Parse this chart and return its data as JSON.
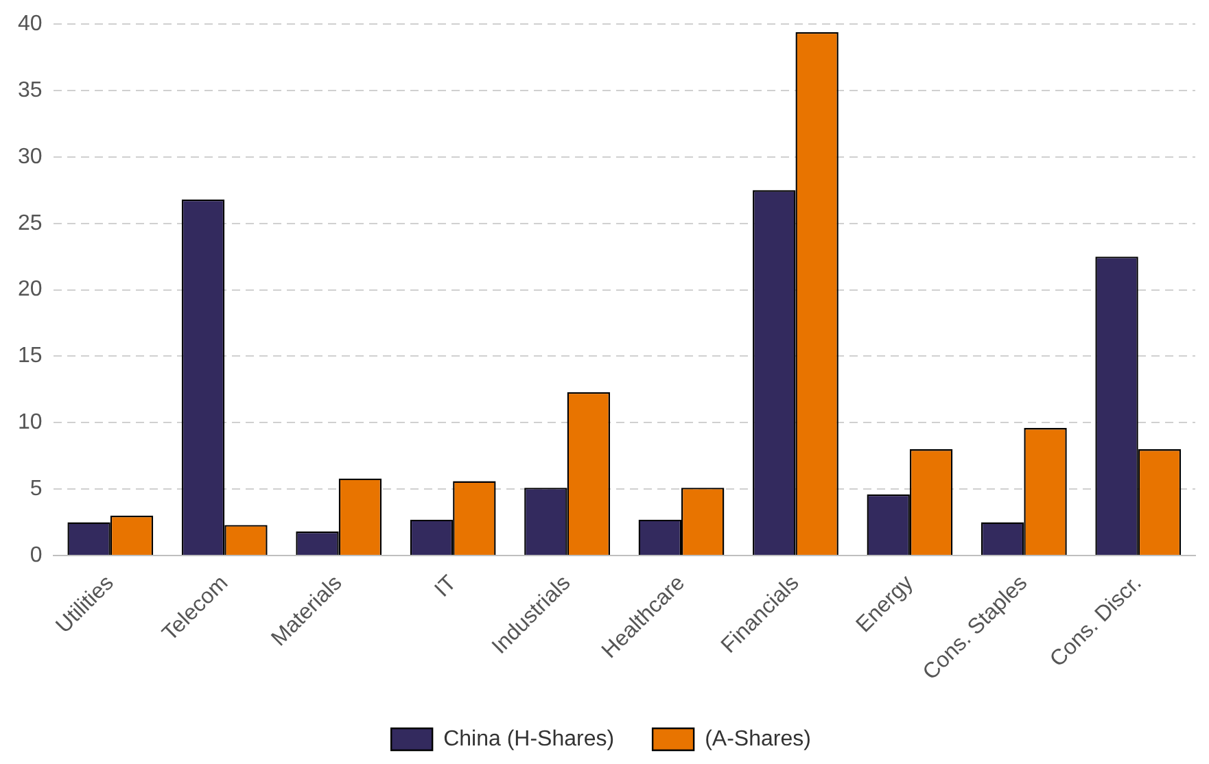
{
  "chart_data": {
    "type": "bar",
    "categories": [
      "Utilities",
      "Telecom",
      "Materials",
      "IT",
      "Industrials",
      "Healthcare",
      "Financials",
      "Energy",
      "Cons. Staples",
      "Cons. Discr."
    ],
    "series": [
      {
        "name": "China (H-Shares)",
        "color": "#332a5e",
        "values": [
          2.5,
          26.8,
          1.8,
          2.7,
          5.1,
          2.7,
          27.5,
          4.6,
          2.5,
          22.5
        ]
      },
      {
        "name": "(A-Shares)",
        "color": "#e87400",
        "values": [
          3.0,
          2.3,
          5.8,
          5.6,
          12.3,
          5.1,
          39.4,
          8.0,
          9.6,
          8.0
        ]
      }
    ],
    "ylim": [
      0,
      40
    ],
    "yticks": [
      0,
      5,
      10,
      15,
      20,
      25,
      30,
      35,
      40
    ],
    "grid": "y",
    "legend": "bottom"
  }
}
